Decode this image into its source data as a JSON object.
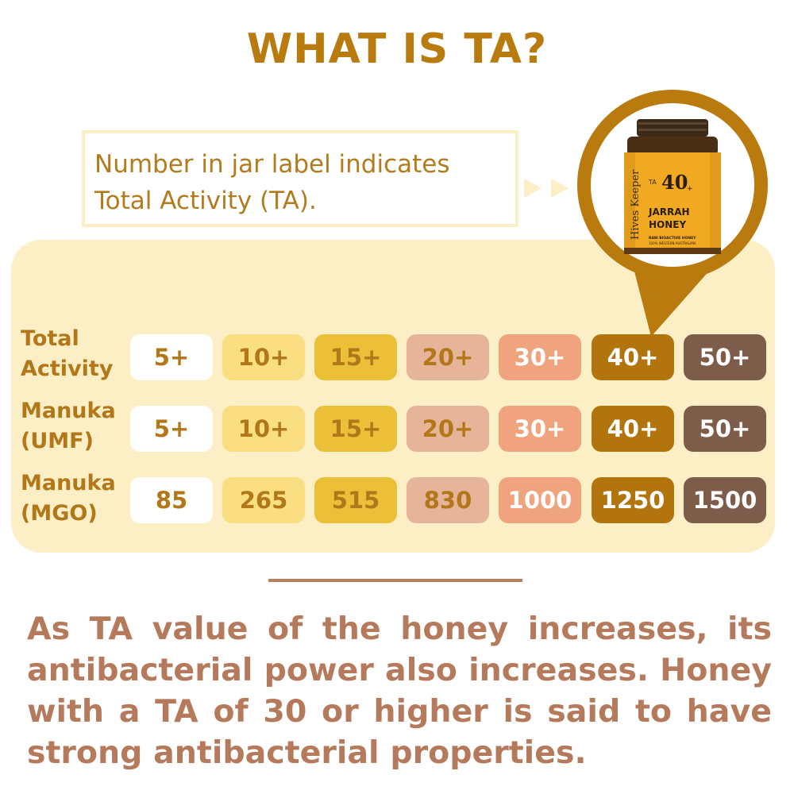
{
  "title": "WHAT IS TA?",
  "callout": {
    "line1": "Number in jar label indicates",
    "line2": "Total Activity (TA)."
  },
  "jar": {
    "brand": "Hives Keeper",
    "ta_prefix": "TA",
    "ta_value": "40",
    "plus": "+",
    "name_line1": "JARRAH",
    "name_line2": "HONEY",
    "subtitle": "RAW BIOACTIVE HONEY",
    "origin": "100% WESTERN AUSTRALIAN"
  },
  "rows": [
    {
      "label_line1": "Total",
      "label_line2": "Activity",
      "values": [
        "5+",
        "10+",
        "15+",
        "20+",
        "30+",
        "40+",
        "50+"
      ]
    },
    {
      "label_line1": "Manuka",
      "label_line2": "(UMF)",
      "values": [
        "5+",
        "10+",
        "15+",
        "20+",
        "30+",
        "40+",
        "50+"
      ]
    },
    {
      "label_line1": "Manuka",
      "label_line2": "(MGO)",
      "values": [
        "85",
        "265",
        "515",
        "830",
        "1000",
        "1250",
        "1500"
      ]
    }
  ],
  "column_colors": [
    {
      "bg": "#ffffff",
      "fg": "#b27718"
    },
    {
      "bg": "#f9de82",
      "fg": "#b27718"
    },
    {
      "bg": "#ecbf38",
      "fg": "#b27718"
    },
    {
      "bg": "#e5b499",
      "fg": "#b27718"
    },
    {
      "bg": "#f0a47d",
      "fg": "#ffffff"
    },
    {
      "bg": "#b2750e",
      "fg": "#ffffff"
    },
    {
      "bg": "#7d5c4a",
      "fg": "#ffffff"
    }
  ],
  "paragraph": "As TA value of the honey increases, its antibacterial power also increases. Honey with a TA of 30 or higher is said to have strong antibacterial properties."
}
